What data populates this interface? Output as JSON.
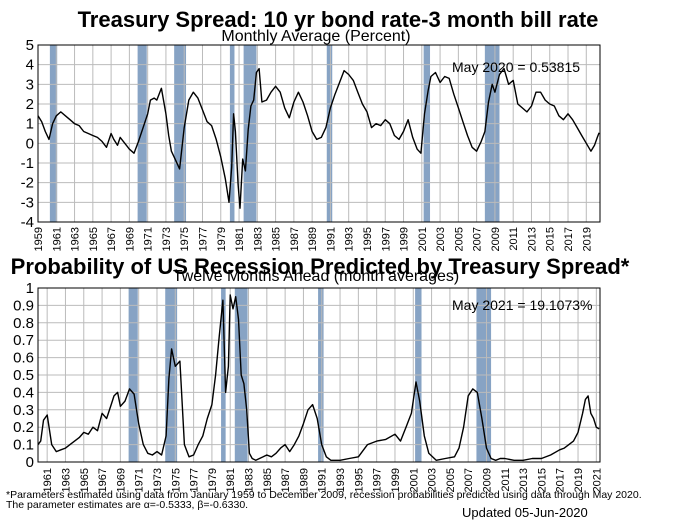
{
  "chart_data": [
    {
      "type": "line",
      "title": "Treasury Spread: 10 yr bond rate-3 month bill rate",
      "subtitle": "Monthly Average (Percent)",
      "annotation": "May 2020 = 0.53815",
      "ylim": [
        -4,
        5
      ],
      "yticks": [
        "5",
        "4",
        "3",
        "2",
        "1",
        "0",
        "-1",
        "-2",
        "-3",
        "-4"
      ],
      "xlim": [
        1959,
        2020.5
      ],
      "xticks": [
        "1959",
        "1961",
        "1963",
        "1965",
        "1967",
        "1969",
        "1971",
        "1973",
        "1975",
        "1977",
        "1979",
        "1981",
        "1983",
        "1985",
        "1987",
        "1989",
        "1991",
        "1993",
        "1995",
        "1997",
        "1999",
        "2001",
        "2003",
        "2005",
        "2007",
        "2009",
        "2011",
        "2013",
        "2015",
        "2017",
        "2019"
      ],
      "grid": true,
      "recession_bands": [
        [
          1960.3,
          1961.1
        ],
        [
          1969.9,
          1970.9
        ],
        [
          1973.9,
          1975.2
        ],
        [
          1980.0,
          1980.5
        ],
        [
          1981.5,
          1982.9
        ],
        [
          1990.6,
          1991.2
        ],
        [
          2001.2,
          2001.9
        ],
        [
          2007.9,
          2009.5
        ]
      ],
      "series": [
        {
          "x": [
            1959.0,
            1959.4,
            1959.8,
            1960.2,
            1960.6,
            1961.0,
            1961.5,
            1962.0,
            1962.5,
            1963.0,
            1963.5,
            1964.0,
            1964.5,
            1965.0,
            1965.5,
            1966.0,
            1966.5,
            1967.0,
            1967.3,
            1967.7,
            1968.0,
            1968.5,
            1969.0,
            1969.5,
            1970.0,
            1970.5,
            1971.0,
            1971.3,
            1971.7,
            1972.0,
            1972.5,
            1973.0,
            1973.3,
            1973.6,
            1974.0,
            1974.5,
            1975.0,
            1975.5,
            1976.0,
            1976.5,
            1977.0,
            1977.5,
            1978.0,
            1978.5,
            1979.0,
            1979.5,
            1979.9,
            1980.2,
            1980.4,
            1980.6,
            1980.9,
            1981.1,
            1981.4,
            1981.7,
            1982.0,
            1982.3,
            1982.6,
            1982.9,
            1983.2,
            1983.5,
            1984.0,
            1984.5,
            1985.0,
            1985.5,
            1986.0,
            1986.5,
            1987.0,
            1987.5,
            1988.0,
            1988.5,
            1989.0,
            1989.5,
            1990.0,
            1990.5,
            1991.0,
            1991.5,
            1992.0,
            1992.5,
            1993.0,
            1993.5,
            1994.0,
            1994.5,
            1995.0,
            1995.5,
            1996.0,
            1996.5,
            1997.0,
            1997.5,
            1998.0,
            1998.5,
            1999.0,
            1999.5,
            2000.0,
            2000.5,
            2000.9,
            2001.3,
            2001.7,
            2002.0,
            2002.5,
            2003.0,
            2003.5,
            2004.0,
            2004.5,
            2005.0,
            2005.5,
            2006.0,
            2006.5,
            2007.0,
            2007.5,
            2007.9,
            2008.3,
            2008.7,
            2009.0,
            2009.5,
            2010.0,
            2010.5,
            2011.0,
            2011.5,
            2012.0,
            2012.5,
            2013.0,
            2013.5,
            2014.0,
            2014.5,
            2015.0,
            2015.5,
            2016.0,
            2016.5,
            2017.0,
            2017.5,
            2018.0,
            2018.5,
            2019.0,
            2019.5,
            2019.9,
            2020.2,
            2020.4
          ],
          "y": [
            1.4,
            1.1,
            0.6,
            0.2,
            1.0,
            1.4,
            1.6,
            1.4,
            1.2,
            1.0,
            0.9,
            0.6,
            0.5,
            0.4,
            0.3,
            0.1,
            -0.2,
            0.5,
            0.2,
            -0.1,
            0.3,
            0.0,
            -0.3,
            -0.5,
            0.1,
            0.8,
            1.5,
            2.2,
            2.3,
            2.2,
            2.8,
            1.5,
            0.4,
            -0.4,
            -0.8,
            -1.3,
            0.8,
            2.2,
            2.6,
            2.3,
            1.7,
            1.1,
            0.9,
            0.2,
            -0.7,
            -1.8,
            -3.0,
            -1.2,
            1.5,
            0.6,
            -2.1,
            -3.3,
            -0.8,
            -1.4,
            0.7,
            1.9,
            2.2,
            3.6,
            3.8,
            2.1,
            2.2,
            2.6,
            2.9,
            2.6,
            1.8,
            1.3,
            2.1,
            2.6,
            2.1,
            1.4,
            0.6,
            0.2,
            0.3,
            0.8,
            1.8,
            2.5,
            3.1,
            3.7,
            3.5,
            3.2,
            2.6,
            2.0,
            1.6,
            0.8,
            1.0,
            0.9,
            1.2,
            1.0,
            0.4,
            0.2,
            0.6,
            1.2,
            0.3,
            -0.3,
            -0.5,
            1.5,
            2.7,
            3.4,
            3.6,
            3.1,
            3.4,
            3.3,
            2.5,
            1.8,
            1.1,
            0.4,
            -0.2,
            -0.4,
            0.1,
            0.6,
            2.1,
            3.0,
            2.6,
            3.5,
            3.8,
            3.0,
            3.2,
            2.0,
            1.8,
            1.6,
            1.9,
            2.6,
            2.6,
            2.2,
            2.0,
            1.9,
            1.4,
            1.2,
            1.5,
            1.2,
            0.8,
            0.4,
            0.0,
            -0.4,
            -0.1,
            0.3,
            0.54
          ]
        }
      ]
    },
    {
      "type": "line",
      "title": "Probability of US Recession Predicted by Treasury Spread*",
      "subtitle": "Twelve Months Ahead (month averages)",
      "annotation": "May 2021 = 19.1073%",
      "ylim": [
        0,
        1
      ],
      "yticks": [
        "1",
        "0.9",
        "0.8",
        "0.7",
        "0.6",
        "0.5",
        "0.4",
        "0.3",
        "0.2",
        "0.1",
        "0"
      ],
      "xlim": [
        1960,
        2021.4
      ],
      "xticks": [
        "1961",
        "1963",
        "1965",
        "1967",
        "1969",
        "1971",
        "1973",
        "1975",
        "1977",
        "1979",
        "1981",
        "1983",
        "1985",
        "1987",
        "1989",
        "1991",
        "1993",
        "1995",
        "1997",
        "1999",
        "2001",
        "2003",
        "2005",
        "2007",
        "2009",
        "2011",
        "2013",
        "2015",
        "2017",
        "2019",
        "2021"
      ],
      "grid": true,
      "recession_bands": [
        [
          1969.9,
          1970.9
        ],
        [
          1973.9,
          1975.2
        ],
        [
          1980.0,
          1980.5
        ],
        [
          1981.5,
          1982.9
        ],
        [
          1990.6,
          1991.2
        ],
        [
          2001.2,
          2001.9
        ],
        [
          2007.9,
          2009.5
        ]
      ],
      "series": [
        {
          "x": [
            1960.0,
            1960.3,
            1960.6,
            1961.0,
            1961.5,
            1962.0,
            1962.5,
            1963.0,
            1963.5,
            1964.0,
            1964.5,
            1965.0,
            1965.5,
            1966.0,
            1966.5,
            1967.0,
            1967.5,
            1968.0,
            1968.3,
            1968.7,
            1969.0,
            1969.5,
            1970.0,
            1970.5,
            1971.0,
            1971.5,
            1972.0,
            1972.5,
            1973.0,
            1973.5,
            1974.0,
            1974.3,
            1974.6,
            1975.0,
            1975.5,
            1976.0,
            1976.5,
            1977.0,
            1977.5,
            1978.0,
            1978.5,
            1979.0,
            1979.4,
            1979.8,
            1980.2,
            1980.5,
            1980.8,
            1981.0,
            1981.3,
            1981.6,
            1981.9,
            1982.2,
            1982.5,
            1982.8,
            1983.1,
            1983.4,
            1983.8,
            1984.2,
            1984.6,
            1985.0,
            1985.5,
            1986.0,
            1986.5,
            1987.0,
            1987.5,
            1988.0,
            1988.5,
            1989.0,
            1989.5,
            1990.0,
            1990.5,
            1991.0,
            1991.5,
            1992.0,
            1993.0,
            1994.0,
            1995.0,
            1996.0,
            1997.0,
            1998.0,
            1999.0,
            1999.6,
            2000.2,
            2000.8,
            2001.3,
            2001.7,
            2002.2,
            2002.7,
            2003.5,
            2004.5,
            2005.5,
            2006.0,
            2006.5,
            2007.0,
            2007.5,
            2008.0,
            2008.5,
            2009.0,
            2009.5,
            2010.0,
            2010.5,
            2011.0,
            2012.0,
            2013.0,
            2014.0,
            2015.0,
            2016.0,
            2017.0,
            2017.5,
            2018.0,
            2018.5,
            2019.0,
            2019.5,
            2019.8,
            2020.1,
            2020.4,
            2020.7,
            2021.0,
            2021.3
          ],
          "y": [
            0.1,
            0.12,
            0.24,
            0.27,
            0.1,
            0.06,
            0.07,
            0.08,
            0.1,
            0.12,
            0.14,
            0.17,
            0.16,
            0.2,
            0.18,
            0.28,
            0.25,
            0.33,
            0.38,
            0.4,
            0.32,
            0.35,
            0.42,
            0.39,
            0.22,
            0.1,
            0.05,
            0.04,
            0.06,
            0.04,
            0.15,
            0.48,
            0.65,
            0.55,
            0.58,
            0.1,
            0.03,
            0.04,
            0.1,
            0.15,
            0.25,
            0.33,
            0.5,
            0.72,
            0.93,
            0.4,
            0.55,
            0.96,
            0.88,
            0.95,
            0.82,
            0.5,
            0.45,
            0.3,
            0.05,
            0.02,
            0.01,
            0.02,
            0.03,
            0.04,
            0.03,
            0.05,
            0.08,
            0.1,
            0.06,
            0.1,
            0.15,
            0.22,
            0.3,
            0.33,
            0.25,
            0.1,
            0.03,
            0.01,
            0.01,
            0.02,
            0.03,
            0.1,
            0.12,
            0.13,
            0.16,
            0.12,
            0.2,
            0.28,
            0.46,
            0.35,
            0.15,
            0.05,
            0.01,
            0.02,
            0.03,
            0.08,
            0.2,
            0.38,
            0.42,
            0.4,
            0.25,
            0.08,
            0.02,
            0.01,
            0.02,
            0.02,
            0.01,
            0.01,
            0.02,
            0.02,
            0.04,
            0.07,
            0.08,
            0.1,
            0.12,
            0.17,
            0.28,
            0.36,
            0.38,
            0.28,
            0.25,
            0.2,
            0.19
          ]
        }
      ]
    }
  ],
  "footnote_line1": "*Parameters estimated using data from January 1959 to December 2009, recession probabilities predicted using data through May 2020.",
  "footnote_line2": "The parameter estimates are α=-0.5333, β=-0.6330.",
  "updated": "Updated 05-Jun-2020",
  "colors": {
    "band": "#87a3c4",
    "line": "#000000",
    "grid": "#bbbbbb"
  }
}
